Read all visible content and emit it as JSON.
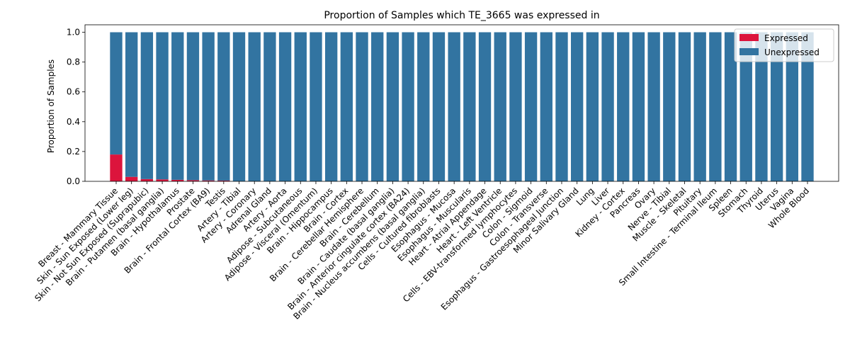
{
  "chart_data": {
    "type": "bar",
    "stacked": true,
    "title": "Proportion of Samples which TE_3665 was expressed in",
    "xlabel": "",
    "ylabel": "Proportion of Samples",
    "ylim": [
      0,
      1.05
    ],
    "yticks": [
      "0.0",
      "0.2",
      "0.4",
      "0.6",
      "0.8",
      "1.0"
    ],
    "legend_position": "top-right",
    "grid": false,
    "categories": [
      "Breast - Mammary Tissue",
      "Skin - Sun Exposed (Lower leg)",
      "Skin - Not Sun Exposed (Suprapubic)",
      "Brain - Putamen (basal ganglia)",
      "Brain - Hypothalamus",
      "Prostate",
      "Brain - Frontal Cortex (BA9)",
      "Testis",
      "Artery - Tibial",
      "Artery - Coronary",
      "Adrenal Gland",
      "Artery - Aorta",
      "Adipose - Subcutaneous",
      "Adipose - Visceral (Omentum)",
      "Brain - Hippocampus",
      "Brain - Cortex",
      "Brain - Cerebellar Hemisphere",
      "Brain - Cerebellum",
      "Brain - Caudate (basal ganglia)",
      "Brain - Anterior cingulate cortex (BA24)",
      "Brain - Nucleus accumbens (basal ganglia)",
      "Cells - Cultured fibroblasts",
      "Esophagus - Mucosa",
      "Esophagus - Muscularis",
      "Heart - Atrial Appendage",
      "Heart - Left Ventricle",
      "Cells - EBV-transformed lymphocytes",
      "Colon - Sigmoid",
      "Colon - Transverse",
      "Esophagus - Gastroesophageal Junction",
      "Minor Salivary Gland",
      "Lung",
      "Liver",
      "Kidney - Cortex",
      "Pancreas",
      "Ovary",
      "Nerve - Tibial",
      "Muscle - Skeletal",
      "Pituitary",
      "Small Intestine - Terminal Ileum",
      "Spleen",
      "Stomach",
      "Thyroid",
      "Uterus",
      "Vagina",
      "Whole Blood"
    ],
    "series": [
      {
        "name": "Expressed",
        "color": "#dc143c",
        "values": [
          0.18,
          0.03,
          0.015,
          0.013,
          0.01,
          0.008,
          0.006,
          0.005,
          0,
          0,
          0,
          0,
          0,
          0,
          0,
          0,
          0,
          0,
          0,
          0,
          0,
          0,
          0,
          0,
          0,
          0,
          0,
          0,
          0,
          0,
          0,
          0,
          0,
          0,
          0,
          0,
          0,
          0,
          0,
          0,
          0,
          0,
          0,
          0,
          0,
          0
        ]
      },
      {
        "name": "Unexpressed",
        "color": "#3274a1",
        "values": [
          0.82,
          0.97,
          0.985,
          0.987,
          0.99,
          0.992,
          0.994,
          0.995,
          1,
          1,
          1,
          1,
          1,
          1,
          1,
          1,
          1,
          1,
          1,
          1,
          1,
          1,
          1,
          1,
          1,
          1,
          1,
          1,
          1,
          1,
          1,
          1,
          1,
          1,
          1,
          1,
          1,
          1,
          1,
          1,
          1,
          1,
          1,
          1,
          1,
          1
        ]
      }
    ]
  }
}
